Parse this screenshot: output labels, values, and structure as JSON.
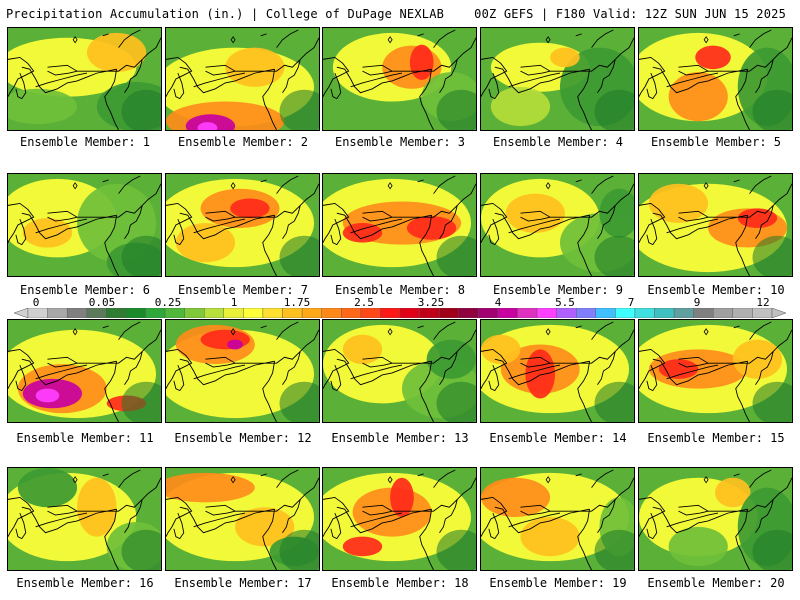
{
  "header": {
    "left": "Precipitation Accumulation (in.) | College of DuPage NEXLAB",
    "right": "00Z GEFS | F180 Valid: 12Z SUN JUN 15 2025"
  },
  "colorbar": {
    "labels": [
      "0",
      "0.05",
      "0.25",
      "1",
      "1.75",
      "2.5",
      "3.25",
      "4",
      "5.5",
      "7",
      "9",
      "12"
    ],
    "bins": [
      "#d0d0d0",
      "#a8a8a8",
      "#808080",
      "#5a7a5a",
      "#2e7d32",
      "#1b8a2a",
      "#2ea83a",
      "#4fb83a",
      "#7fc83a",
      "#b8e03a",
      "#e8f03a",
      "#ffff3a",
      "#ffe030",
      "#ffc020",
      "#ffa818",
      "#ff8818",
      "#ff6818",
      "#ff4818",
      "#ff1818",
      "#e00018",
      "#c00018",
      "#a00018",
      "#900040",
      "#a00070",
      "#c800a0",
      "#e030c0",
      "#ff40ff",
      "#b060ff",
      "#8080ff",
      "#40c0ff",
      "#40ffff",
      "#40e0e0",
      "#40c0c0",
      "#60a0a0",
      "#808080",
      "#a0a0a0",
      "#b0b0b0",
      "#c0c0c0"
    ]
  },
  "panels": [
    {
      "label": "Ensemble Member: 1"
    },
    {
      "label": "Ensemble Member: 2"
    },
    {
      "label": "Ensemble Member: 3"
    },
    {
      "label": "Ensemble Member: 4"
    },
    {
      "label": "Ensemble Member: 5"
    },
    {
      "label": "Ensemble Member: 6"
    },
    {
      "label": "Ensemble Member: 7"
    },
    {
      "label": "Ensemble Member: 8"
    },
    {
      "label": "Ensemble Member: 9"
    },
    {
      "label": "Ensemble Member: 10"
    },
    {
      "label": "Ensemble Member: 11"
    },
    {
      "label": "Ensemble Member: 12"
    },
    {
      "label": "Ensemble Member: 13"
    },
    {
      "label": "Ensemble Member: 14"
    },
    {
      "label": "Ensemble Member: 15"
    },
    {
      "label": "Ensemble Member: 16"
    },
    {
      "label": "Ensemble Member: 17"
    },
    {
      "label": "Ensemble Member: 18"
    },
    {
      "label": "Ensemble Member: 19"
    },
    {
      "label": "Ensemble Member: 20"
    }
  ]
}
